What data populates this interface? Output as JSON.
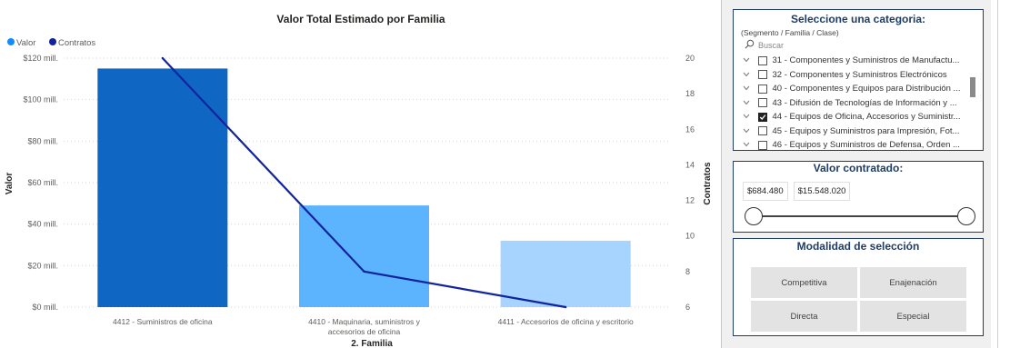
{
  "chart_data": {
    "type": "bar",
    "title": "Valor Total Estimado por Familia",
    "xlabel": "2. Familia",
    "ylabel": "Valor",
    "y2label": "Contratos",
    "legend": [
      {
        "name": "Valor",
        "color": "#118dff"
      },
      {
        "name": "Contratos",
        "color": "#12239e"
      }
    ],
    "legend_position": "top-left",
    "categories": [
      [
        "4412 - Suministros de oficina"
      ],
      [
        "4410 - Maquinaria, suministros y",
        "accesorios de oficina"
      ],
      [
        "4411 - Accesorios de oficina y escritorio"
      ]
    ],
    "series": [
      {
        "name": "Valor",
        "axis": "left",
        "type": "bar",
        "values": [
          115,
          49,
          32
        ],
        "colors": [
          "#0f67c3",
          "#5cb4ff",
          "#a6d3ff"
        ]
      },
      {
        "name": "Contratos",
        "axis": "right",
        "type": "line",
        "values": [
          20,
          8,
          6
        ],
        "color": "#12239e"
      }
    ],
    "ylim": [
      0,
      120
    ],
    "y_ticks": [
      "$0 mill.",
      "$20 mill.",
      "$40 mill.",
      "$60 mill.",
      "$80 mill.",
      "$100 mill.",
      "$120 mill."
    ],
    "y2lim": [
      6,
      20
    ],
    "y2_ticks": [
      "6",
      "8",
      "10",
      "12",
      "14",
      "16",
      "18",
      "20"
    ],
    "grid": true
  },
  "category_slicer": {
    "title": "Seleccione una categoria:",
    "subtitle": "(Segmento / Familia / Clase)",
    "search_placeholder": "Buscar",
    "items": [
      {
        "label": "31 - Componentes y Suministros de Manufactu...",
        "checked": false
      },
      {
        "label": "32 - Componentes y Suministros Electrónicos",
        "checked": false
      },
      {
        "label": "40 - Componentes y Equipos para Distribución ...",
        "checked": false
      },
      {
        "label": "43 - Difusión de Tecnologías de Información y ...",
        "checked": false
      },
      {
        "label": "44 - Equipos de Oficina, Accesorios y Suministr...",
        "checked": true
      },
      {
        "label": "45 - Equipos y Suministros para Impresión, Fot...",
        "checked": false
      },
      {
        "label": "46 - Equipos y Suministros de Defensa, Orden ...",
        "checked": false
      }
    ]
  },
  "value_slicer": {
    "title": "Valor contratado:",
    "min_value": "$684.480",
    "max_value": "$15.548.020"
  },
  "mode_slicer": {
    "title": "Modalidad de selección",
    "options": [
      "Competitiva",
      "Enajenación",
      "Directa",
      "Especial"
    ]
  }
}
